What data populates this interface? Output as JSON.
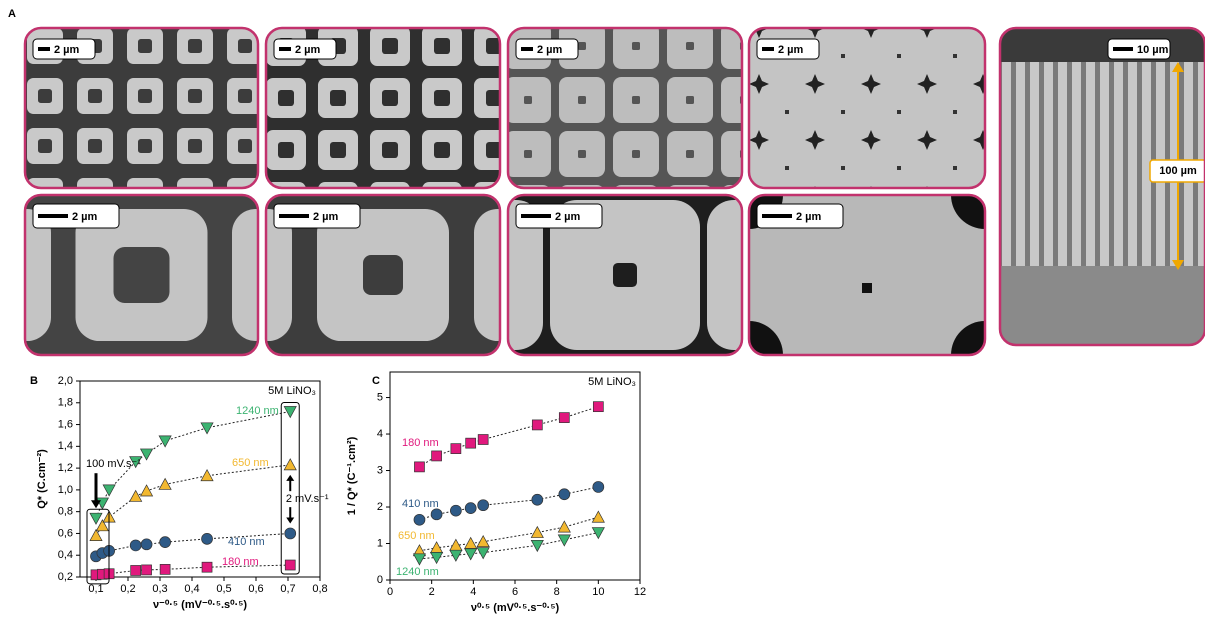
{
  "panels": {
    "A": {
      "label": "A",
      "images": [
        {
          "scale_bar": "2 µm"
        },
        {
          "scale_bar": "2 µm"
        },
        {
          "scale_bar": "2 µm"
        },
        {
          "scale_bar": "2 µm"
        },
        {
          "scale_bar": "2 µm"
        },
        {
          "scale_bar": "2 µm"
        },
        {
          "scale_bar": "2 µm"
        },
        {
          "scale_bar": "2 µm"
        },
        {
          "scale_bar": "10 µm",
          "annotation": "100 µm"
        }
      ]
    }
  },
  "chart_data": [
    {
      "panel": "B",
      "type": "scatter",
      "xlabel": "ν⁻⁰·⁵ (mV⁻⁰·⁵.s⁰·⁵)",
      "ylabel": "Q* (C.cm⁻²)",
      "x": [
        0.1,
        0.12,
        0.141,
        0.224,
        0.258,
        0.316,
        0.447,
        0.707
      ],
      "xlim": [
        0.05,
        0.8
      ],
      "xticks": [
        {
          "value": 0.1,
          "label": "0,1"
        },
        {
          "value": 0.2,
          "label": "0,2"
        },
        {
          "value": 0.3,
          "label": "0,3"
        },
        {
          "value": 0.4,
          "label": "0,4"
        },
        {
          "value": 0.5,
          "label": "0,5"
        },
        {
          "value": 0.6,
          "label": "0,6"
        },
        {
          "value": 0.7,
          "label": "0,7"
        },
        {
          "value": 0.8,
          "label": "0,8"
        }
      ],
      "ylim": [
        0.2,
        2.0
      ],
      "yticks": [
        {
          "value": 0.2,
          "label": "0,2"
        },
        {
          "value": 0.4,
          "label": "0,4"
        },
        {
          "value": 0.6,
          "label": "0,6"
        },
        {
          "value": 0.8,
          "label": "0,8"
        },
        {
          "value": 1.0,
          "label": "1,0"
        },
        {
          "value": 1.2,
          "label": "1,2"
        },
        {
          "value": 1.4,
          "label": "1,4"
        },
        {
          "value": 1.6,
          "label": "1,6"
        },
        {
          "value": 1.8,
          "label": "1,8"
        },
        {
          "value": 2.0,
          "label": "2,0"
        }
      ],
      "annotations": [
        "5M LiNO₃",
        "100 mV.s⁻¹",
        "2 mV.s⁻¹"
      ],
      "series": [
        {
          "name": "1240 nm",
          "color": "#3cb371",
          "marker": "triangle-down",
          "values": [
            0.74,
            0.88,
            1.0,
            1.26,
            1.33,
            1.45,
            1.57,
            1.72
          ]
        },
        {
          "name": "650 nm",
          "color": "#f2b830",
          "marker": "triangle-up",
          "values": [
            0.58,
            0.67,
            0.75,
            0.94,
            0.99,
            1.05,
            1.13,
            1.23
          ]
        },
        {
          "name": "410 nm",
          "color": "#2e5a87",
          "marker": "circle",
          "values": [
            0.39,
            0.42,
            0.44,
            0.49,
            0.5,
            0.52,
            0.55,
            0.6
          ]
        },
        {
          "name": "180 nm",
          "color": "#e0197d",
          "marker": "square",
          "values": [
            0.22,
            0.225,
            0.23,
            0.26,
            0.265,
            0.27,
            0.29,
            0.31
          ]
        }
      ]
    },
    {
      "panel": "C",
      "type": "scatter",
      "xlabel": "ν⁰·⁵ (mV⁰·⁵.s⁻⁰·⁵)",
      "ylabel": "1 / Q* (C⁻¹.cm²)",
      "x": [
        1.414,
        2.236,
        3.162,
        3.873,
        4.472,
        7.071,
        8.367,
        10
      ],
      "xlim": [
        0,
        12
      ],
      "xticks": [
        0,
        2,
        4,
        6,
        8,
        10,
        12
      ],
      "ylim": [
        0,
        5.7
      ],
      "yticks": [
        0,
        1,
        2,
        3,
        4,
        5
      ],
      "annotations": [
        "5M LiNO₃"
      ],
      "series": [
        {
          "name": "180 nm",
          "color": "#e0197d",
          "marker": "square",
          "values": [
            3.1,
            3.4,
            3.6,
            3.75,
            3.85,
            4.25,
            4.45,
            4.75
          ]
        },
        {
          "name": "410 nm",
          "color": "#2e5a87",
          "marker": "circle",
          "values": [
            1.65,
            1.8,
            1.9,
            1.97,
            2.05,
            2.2,
            2.35,
            2.55
          ]
        },
        {
          "name": "650 nm",
          "color": "#f2b830",
          "marker": "triangle-up",
          "values": [
            0.8,
            0.88,
            0.95,
            1.0,
            1.05,
            1.3,
            1.45,
            1.72
          ]
        },
        {
          "name": "1240 nm",
          "color": "#3cb371",
          "marker": "triangle-down",
          "values": [
            0.58,
            0.62,
            0.68,
            0.72,
            0.75,
            0.95,
            1.1,
            1.3
          ]
        }
      ]
    }
  ]
}
